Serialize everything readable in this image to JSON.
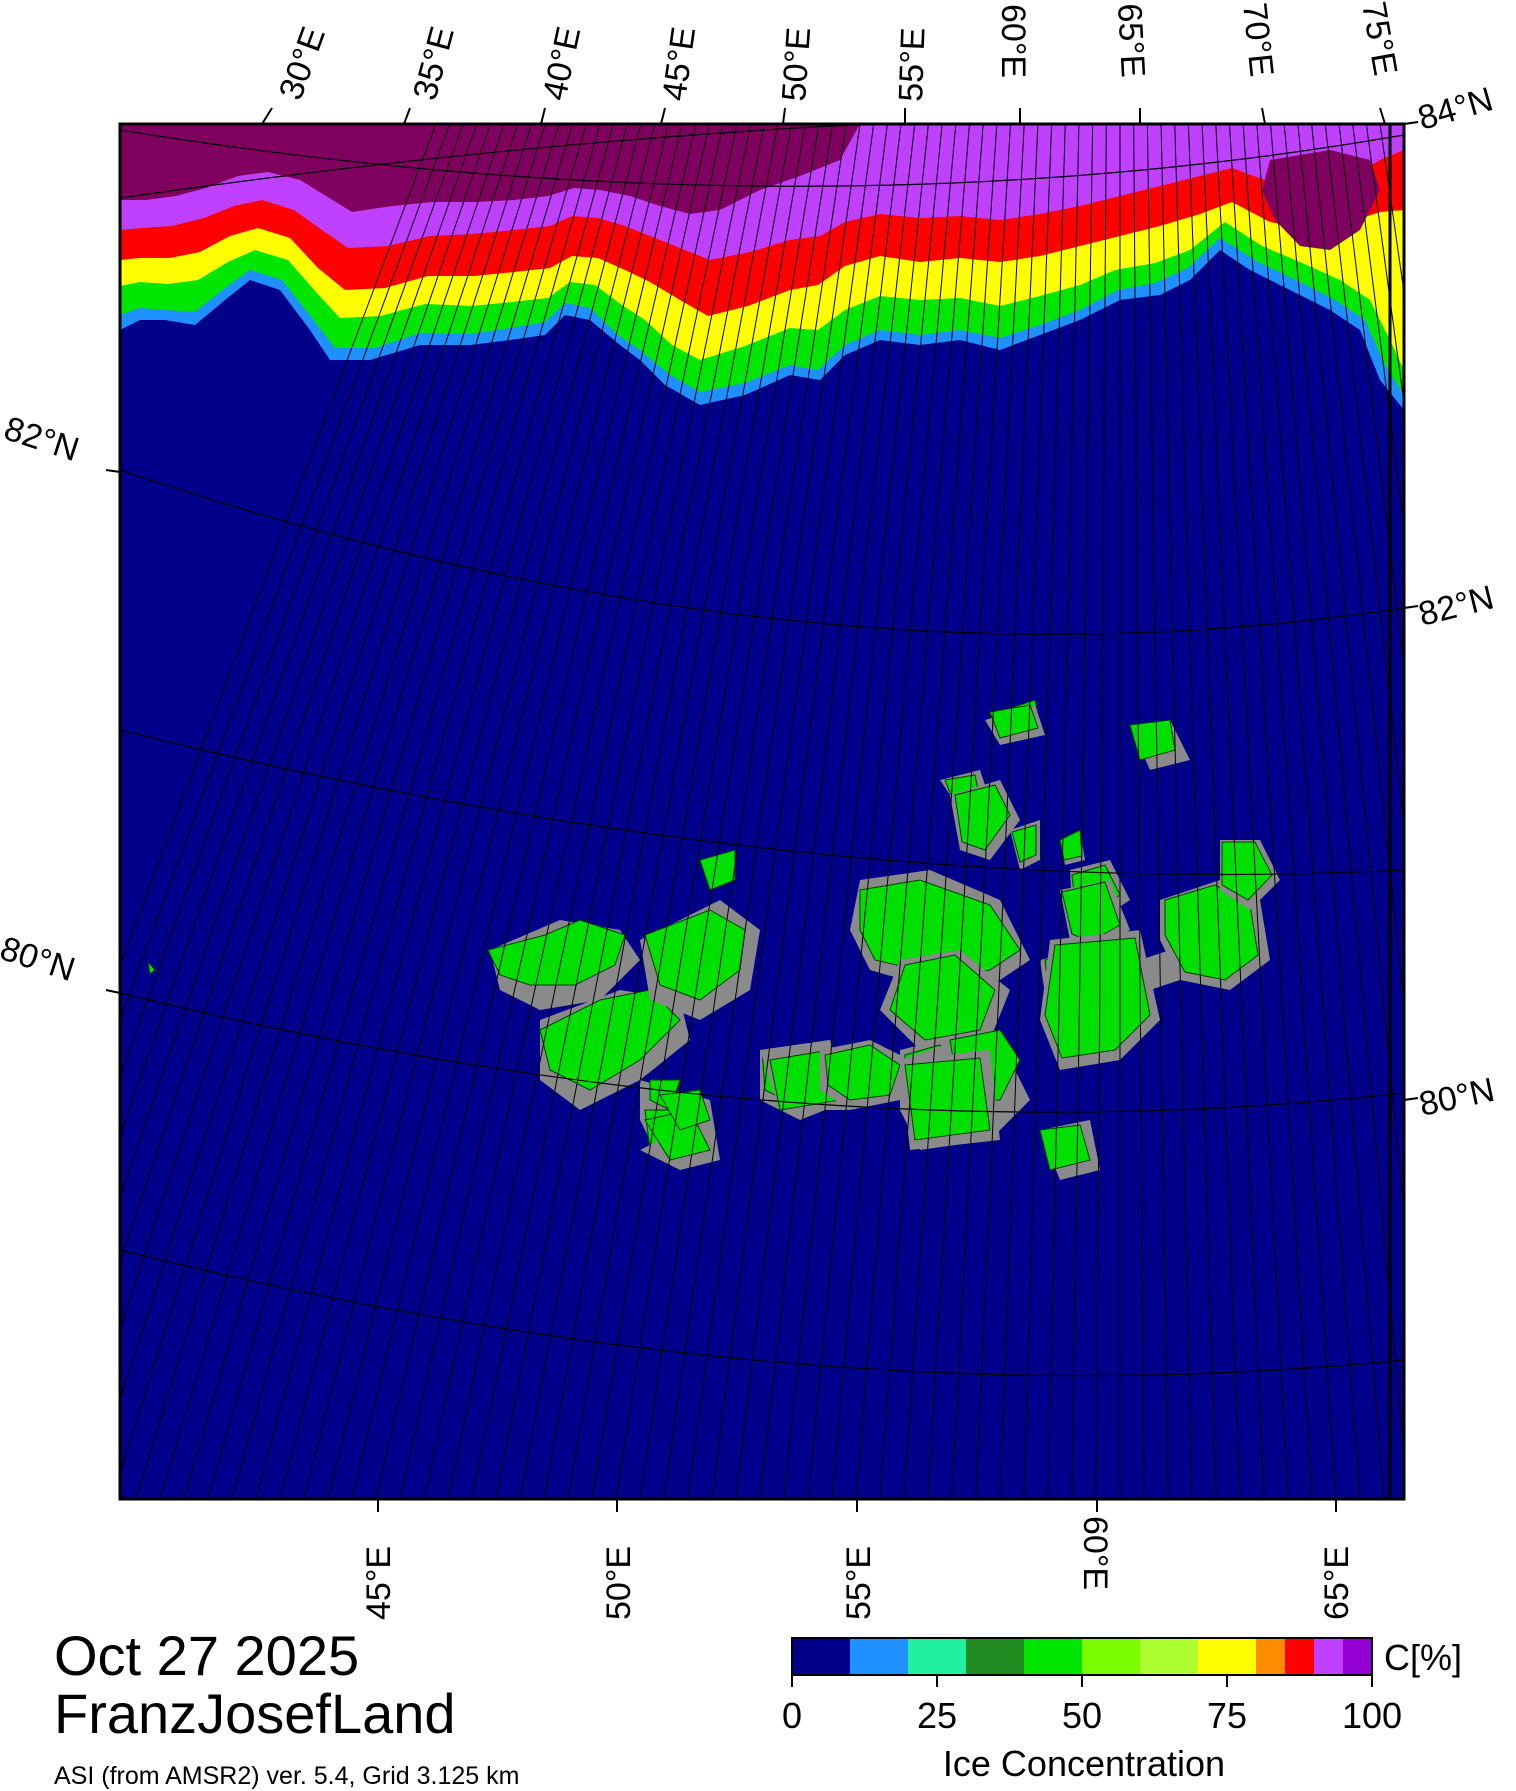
{
  "title": {
    "date": "Oct 27 2025",
    "region": "FranzJosefLand",
    "subtitle": "ASI (from AMSR2) ver. 5.4,  Grid 3.125 km"
  },
  "map": {
    "top_lon_labels": [
      "30°E",
      "35°E",
      "40°E",
      "45°E",
      "50°E",
      "55°E",
      "60°E",
      "65°E",
      "70°E",
      "75°E"
    ],
    "bottom_lon_labels": [
      "45°E",
      "50°E",
      "55°E",
      "60°E",
      "65°E"
    ],
    "left_lat_labels": [
      "82°N",
      "80°N"
    ],
    "right_lat_labels": [
      "84°N",
      "82°N",
      "80°N"
    ],
    "colors": {
      "open_water": "#00008b",
      "land": "#00e000",
      "coast_mask": "#8a8a8a",
      "graticule": "#000000"
    }
  },
  "colorbar": {
    "title": "Ice Concentration",
    "unit_label": "C[%]",
    "ticks": [
      "0",
      "25",
      "50",
      "75",
      "100"
    ],
    "range": [
      0,
      100
    ],
    "colors": [
      "#00008b",
      "#1e90ff",
      "#20f0a0",
      "#228b22",
      "#00e600",
      "#7cfc00",
      "#adff2f",
      "#ffff00",
      "#ff8c00",
      "#ff0000",
      "#c040ff",
      "#9400d3"
    ]
  }
}
